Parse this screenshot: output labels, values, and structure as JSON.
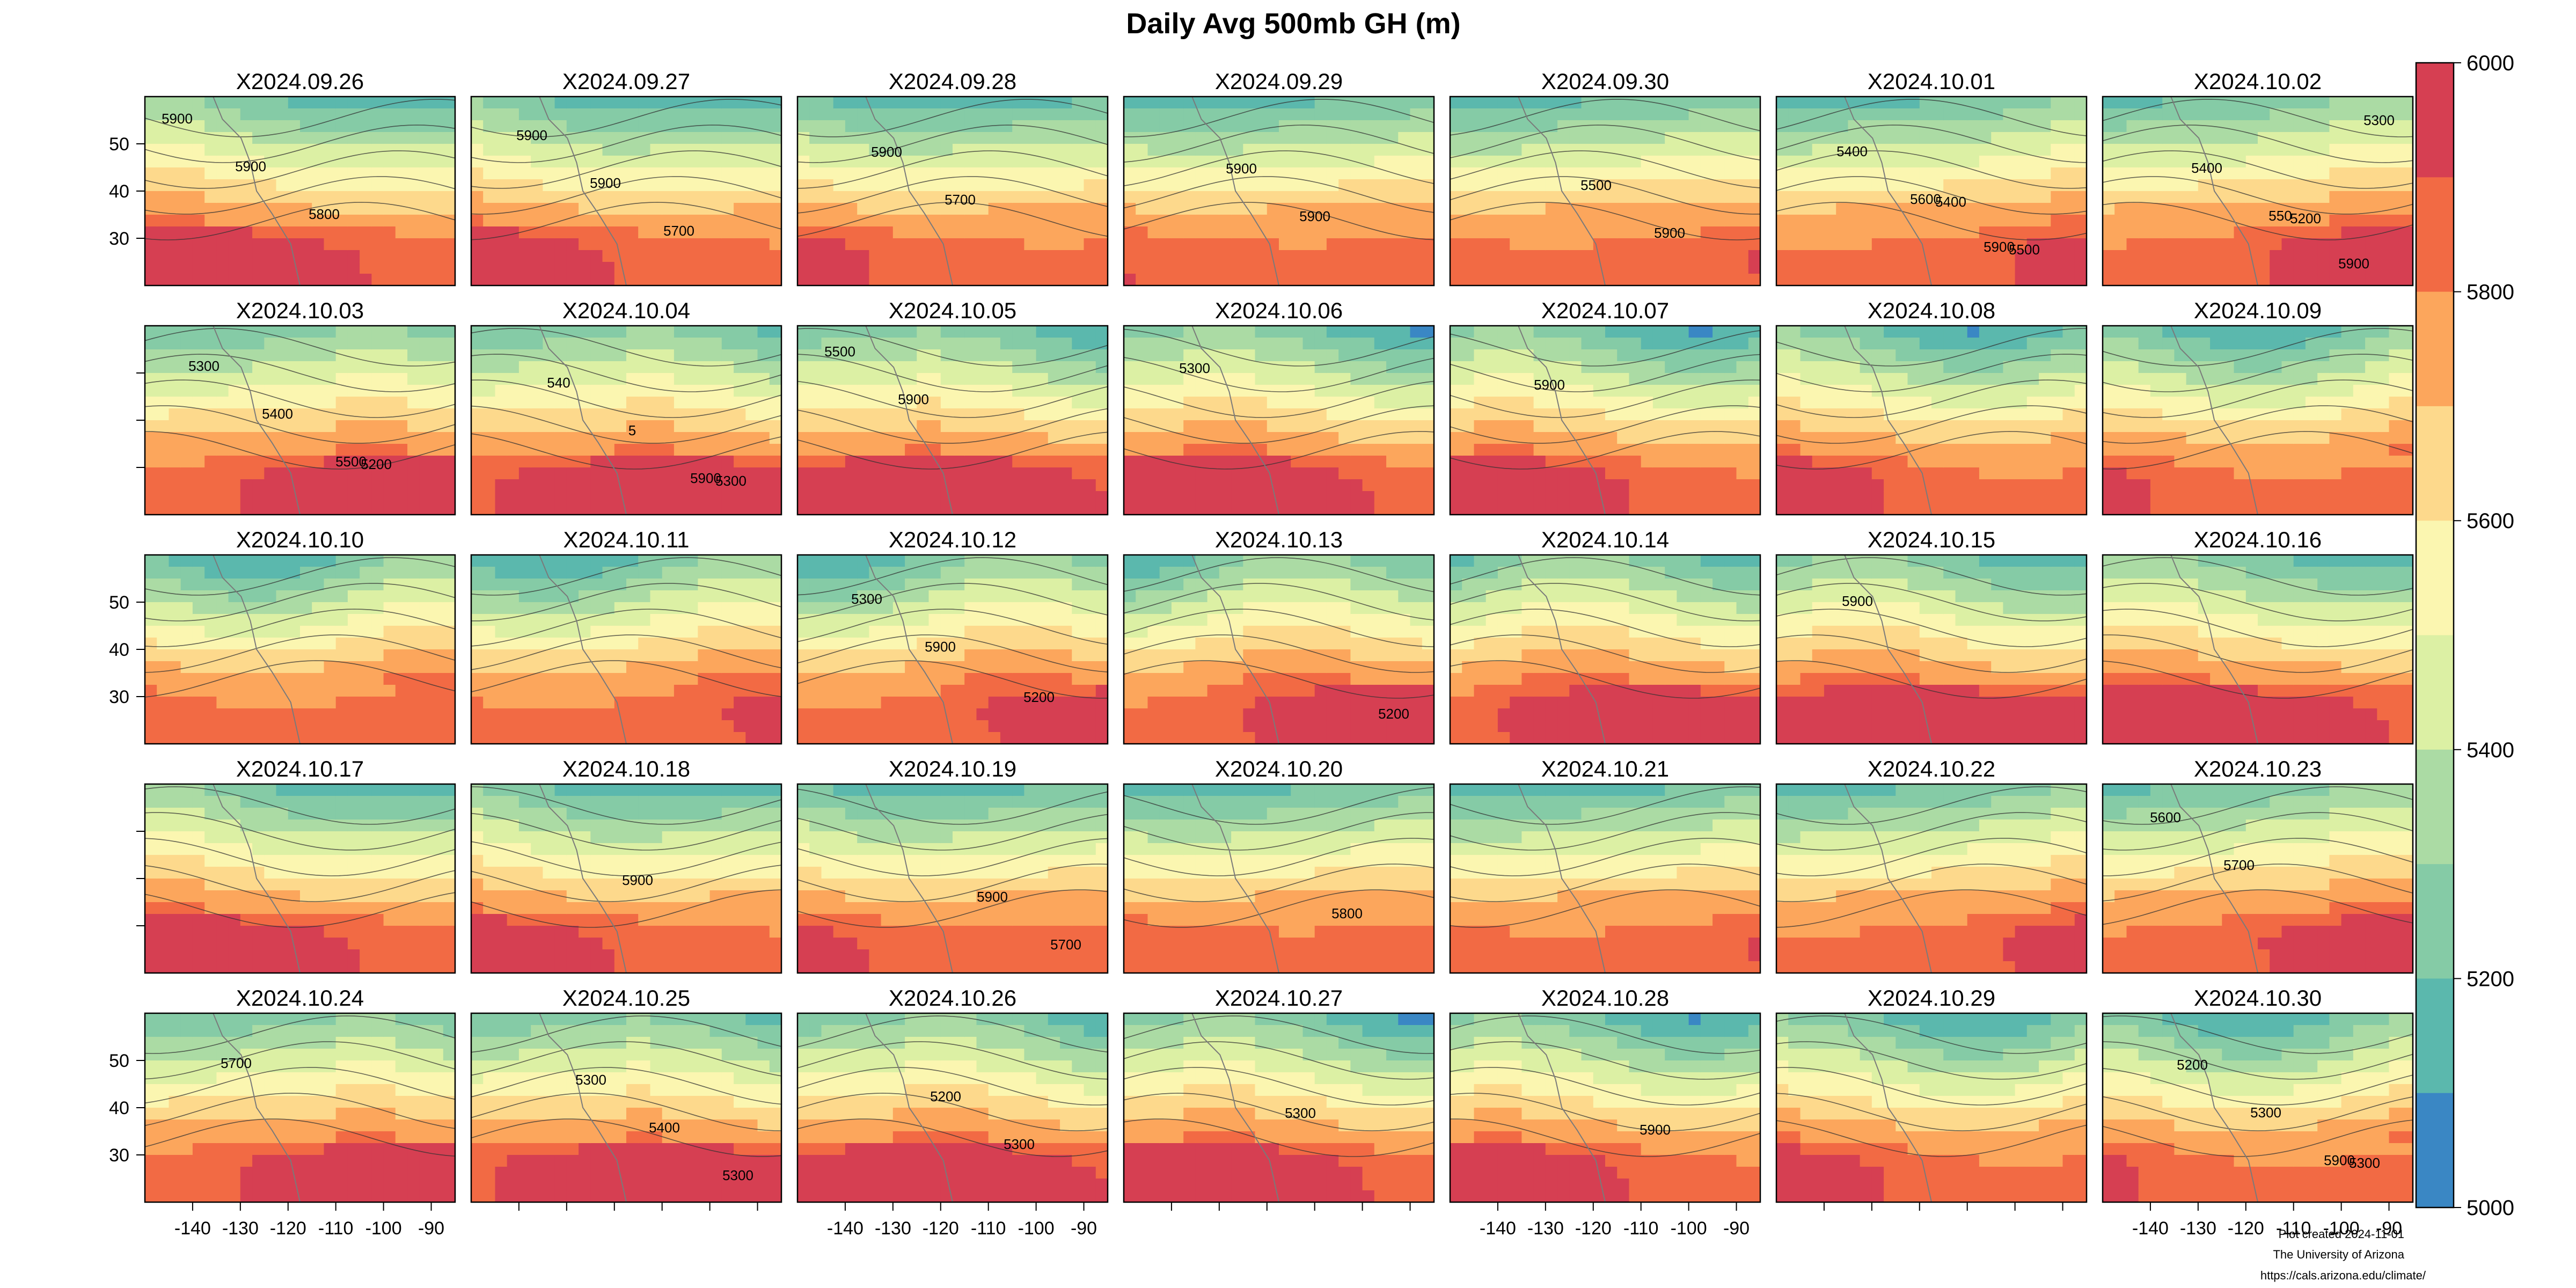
{
  "chart_data": {
    "type": "heatmap",
    "title": "Daily Avg 500mb GH (m)",
    "panels": [
      "X2024.09.26",
      "X2024.09.27",
      "X2024.09.28",
      "X2024.09.29",
      "X2024.09.30",
      "X2024.10.01",
      "X2024.10.02",
      "X2024.10.03",
      "X2024.10.04",
      "X2024.10.05",
      "X2024.10.06",
      "X2024.10.07",
      "X2024.10.08",
      "X2024.10.09",
      "X2024.10.10",
      "X2024.10.11",
      "X2024.10.12",
      "X2024.10.13",
      "X2024.10.14",
      "X2024.10.15",
      "X2024.10.16",
      "X2024.10.17",
      "X2024.10.18",
      "X2024.10.19",
      "X2024.10.20",
      "X2024.10.21",
      "X2024.10.22",
      "X2024.10.23",
      "X2024.10.24",
      "X2024.10.25",
      "X2024.10.26",
      "X2024.10.27",
      "X2024.10.28",
      "X2024.10.29",
      "X2024.10.30"
    ],
    "grid_cols": 7,
    "grid_rows": 5,
    "lon_range": [
      -150,
      -85
    ],
    "lat_range": [
      20,
      60
    ],
    "x_ticks": [
      -140,
      -130,
      -120,
      -110,
      -100,
      -90
    ],
    "x_tick_labels": [
      "-140",
      "-130",
      "-120",
      "-110",
      "-100",
      "-90"
    ],
    "y_ticks": [
      30,
      40,
      50
    ],
    "y_tick_labels": [
      "30",
      "40",
      "50"
    ],
    "colorbar": {
      "range": [
        5000,
        6000
      ],
      "labels": [
        "5000",
        "5200",
        "5400",
        "5600",
        "5800",
        "6000"
      ],
      "bins": [
        {
          "from": 5000,
          "to": 5100,
          "color": "#3a87c4"
        },
        {
          "from": 5100,
          "to": 5200,
          "color": "#5bb8ad"
        },
        {
          "from": 5200,
          "to": 5300,
          "color": "#85cba6"
        },
        {
          "from": 5300,
          "to": 5400,
          "color": "#abdba4"
        },
        {
          "from": 5400,
          "to": 5500,
          "color": "#dcf0a4"
        },
        {
          "from": 5500,
          "to": 5600,
          "color": "#fbf6b0"
        },
        {
          "from": 5600,
          "to": 5700,
          "color": "#fdd98c"
        },
        {
          "from": 5700,
          "to": 5800,
          "color": "#fca65c"
        },
        {
          "from": 5800,
          "to": 5900,
          "color": "#f26a44"
        },
        {
          "from": 5900,
          "to": 6000,
          "color": "#d63f52"
        }
      ]
    },
    "contour_labels": [
      {
        "panel": 0,
        "labels": [
          "5900",
          "5900",
          "5800"
        ]
      },
      {
        "panel": 1,
        "labels": [
          "5900",
          "5900",
          "5700"
        ]
      },
      {
        "panel": 2,
        "labels": [
          "5900",
          "5700"
        ]
      },
      {
        "panel": 3,
        "labels": [
          "5900",
          "5900"
        ]
      },
      {
        "panel": 4,
        "labels": [
          "5500",
          "5900"
        ]
      },
      {
        "panel": 5,
        "labels": [
          "5400",
          "5500",
          "5400",
          "5600",
          "5900"
        ]
      },
      {
        "panel": 6,
        "labels": [
          "5200",
          "5300",
          "5400",
          "550",
          "5900"
        ]
      },
      {
        "panel": 7,
        "labels": [
          "5200",
          "5300",
          "5400",
          "5500"
        ]
      },
      {
        "panel": 8,
        "labels": [
          "5300",
          "540",
          "5",
          "5900"
        ]
      },
      {
        "panel": 9,
        "labels": [
          "5500",
          "5900"
        ]
      },
      {
        "panel": 10,
        "labels": [
          "5300"
        ]
      },
      {
        "panel": 11,
        "labels": [
          "5900"
        ]
      },
      {
        "panel": 16,
        "labels": [
          "5200",
          "5300",
          "5900"
        ]
      },
      {
        "panel": 17,
        "labels": [
          "5200"
        ]
      },
      {
        "panel": 19,
        "labels": [
          "5900"
        ]
      },
      {
        "panel": 22,
        "labels": [
          "5900"
        ]
      },
      {
        "panel": 23,
        "labels": [
          "5900",
          "5700"
        ]
      },
      {
        "panel": 24,
        "labels": [
          "5800"
        ]
      },
      {
        "panel": 27,
        "labels": [
          "5600",
          "5700"
        ]
      },
      {
        "panel": 28,
        "labels": [
          "5700"
        ]
      },
      {
        "panel": 29,
        "labels": [
          "5300",
          "5400",
          "5300"
        ]
      },
      {
        "panel": 30,
        "labels": [
          "5200",
          "5300"
        ]
      },
      {
        "panel": 31,
        "labels": [
          "5300"
        ]
      },
      {
        "panel": 32,
        "labels": [
          "5900"
        ]
      },
      {
        "panel": 34,
        "labels": [
          "5300",
          "5200",
          "5300",
          "5900"
        ]
      }
    ]
  },
  "credits": {
    "line1": "Plot created 2024-11-01",
    "line2": "The University of Arizona",
    "line3": "https://cals.arizona.edu/climate/"
  }
}
